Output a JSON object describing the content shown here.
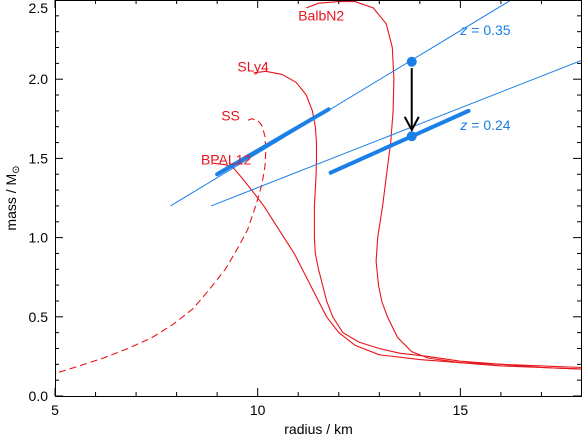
{
  "chart_data": {
    "type": "line",
    "xlabel": "radius / km",
    "ylabel": "mass / M",
    "ylabel_subscript": "⊙",
    "xlim": [
      5,
      18
    ],
    "ylim": [
      0.0,
      2.5
    ],
    "xticks": [
      {
        "value": 5,
        "label": "5"
      },
      {
        "value": 10,
        "label": "10"
      },
      {
        "value": 15,
        "label": "15"
      }
    ],
    "yticks": [
      {
        "value": 0.0,
        "label": "0.0"
      },
      {
        "value": 0.5,
        "label": "0.5"
      },
      {
        "value": 1.0,
        "label": "1.0"
      },
      {
        "value": 1.5,
        "label": "1.5"
      },
      {
        "value": 2.0,
        "label": "2.0"
      },
      {
        "value": 2.5,
        "label": "2.5"
      }
    ],
    "colors": {
      "eos": "#e8141c",
      "z": "#1a7fe6",
      "arrow": "#000000"
    },
    "series": [
      {
        "name": "BalbN2",
        "dashed": false,
        "label_at": [
          11.0,
          2.37
        ],
        "points": [
          [
            18,
            0.17
          ],
          [
            17,
            0.18
          ],
          [
            16,
            0.19
          ],
          [
            15,
            0.21
          ],
          [
            14.2,
            0.24
          ],
          [
            13.8,
            0.28
          ],
          [
            13.45,
            0.37
          ],
          [
            13.2,
            0.5
          ],
          [
            13.06,
            0.6
          ],
          [
            12.98,
            0.7
          ],
          [
            12.92,
            0.85
          ],
          [
            12.96,
            1.0
          ],
          [
            13.08,
            1.2
          ],
          [
            13.18,
            1.4
          ],
          [
            13.28,
            1.6
          ],
          [
            13.34,
            1.8
          ],
          [
            13.36,
            2.0
          ],
          [
            13.32,
            2.2
          ],
          [
            13.17,
            2.35
          ],
          [
            12.85,
            2.45
          ],
          [
            12.4,
            2.49
          ],
          [
            12.0,
            2.49
          ],
          [
            11.5,
            2.48
          ],
          [
            11.2,
            2.45
          ]
        ]
      },
      {
        "name": "SLy4",
        "dashed": false,
        "label_at": [
          9.5,
          2.05
        ],
        "points": [
          [
            18,
            0.17
          ],
          [
            17,
            0.18
          ],
          [
            16,
            0.2
          ],
          [
            15,
            0.22
          ],
          [
            14.2,
            0.25
          ],
          [
            13.5,
            0.27
          ],
          [
            13.0,
            0.3
          ],
          [
            12.5,
            0.34
          ],
          [
            12.1,
            0.4
          ],
          [
            11.85,
            0.5
          ],
          [
            11.7,
            0.6
          ],
          [
            11.6,
            0.7
          ],
          [
            11.5,
            0.8
          ],
          [
            11.42,
            0.9
          ],
          [
            11.4,
            1.0
          ],
          [
            11.4,
            1.1
          ],
          [
            11.4,
            1.2
          ],
          [
            11.42,
            1.3
          ],
          [
            11.44,
            1.4
          ],
          [
            11.45,
            1.5
          ],
          [
            11.45,
            1.6
          ],
          [
            11.42,
            1.7
          ],
          [
            11.35,
            1.8
          ],
          [
            11.2,
            1.9
          ],
          [
            10.95,
            1.98
          ],
          [
            10.6,
            2.03
          ],
          [
            10.2,
            2.05
          ],
          [
            9.9,
            2.04
          ]
        ]
      },
      {
        "name": "BPAL12",
        "dashed": false,
        "label_at": [
          8.6,
          1.46
        ],
        "points": [
          [
            18,
            0.18
          ],
          [
            17,
            0.19
          ],
          [
            16,
            0.2
          ],
          [
            15,
            0.21
          ],
          [
            14.0,
            0.23
          ],
          [
            13.0,
            0.26
          ],
          [
            12.4,
            0.32
          ],
          [
            12.0,
            0.4
          ],
          [
            11.7,
            0.5
          ],
          [
            11.5,
            0.6
          ],
          [
            11.3,
            0.7
          ],
          [
            11.1,
            0.8
          ],
          [
            10.9,
            0.9
          ],
          [
            10.65,
            1.0
          ],
          [
            10.4,
            1.1
          ],
          [
            10.15,
            1.2
          ],
          [
            9.85,
            1.3
          ],
          [
            9.6,
            1.38
          ],
          [
            9.4,
            1.44
          ],
          [
            9.2,
            1.46
          ],
          [
            8.9,
            1.47
          ]
        ]
      },
      {
        "name": "SS",
        "dashed": true,
        "label_at": [
          9.1,
          1.74
        ],
        "points": [
          [
            5.1,
            0.15
          ],
          [
            5.6,
            0.19
          ],
          [
            6.2,
            0.24
          ],
          [
            6.8,
            0.3
          ],
          [
            7.4,
            0.37
          ],
          [
            7.9,
            0.45
          ],
          [
            8.4,
            0.55
          ],
          [
            8.8,
            0.67
          ],
          [
            9.2,
            0.8
          ],
          [
            9.5,
            0.93
          ],
          [
            9.75,
            1.05
          ],
          [
            9.95,
            1.2
          ],
          [
            10.1,
            1.33
          ],
          [
            10.18,
            1.45
          ],
          [
            10.2,
            1.55
          ],
          [
            10.18,
            1.64
          ],
          [
            10.1,
            1.71
          ],
          [
            10.0,
            1.74
          ],
          [
            9.85,
            1.75
          ],
          [
            9.75,
            1.74
          ]
        ]
      }
    ],
    "z_lines": [
      {
        "z": "0.35",
        "thin": [
          [
            7.85,
            1.2
          ],
          [
            16.25,
            2.5
          ]
        ],
        "thick": [
          [
            9.0,
            1.4
          ],
          [
            11.75,
            1.81
          ]
        ],
        "label_at": [
          15.0,
          2.28
        ]
      },
      {
        "z": "0.24",
        "thin": [
          [
            8.85,
            1.2
          ],
          [
            18.0,
            2.12
          ]
        ],
        "thick": [
          [
            11.8,
            1.41
          ],
          [
            15.2,
            1.8
          ]
        ],
        "label_at": [
          15.0,
          1.68
        ]
      }
    ],
    "points": [
      {
        "x": 13.8,
        "y": 2.11
      },
      {
        "x": 13.8,
        "y": 1.64
      }
    ],
    "arrow": {
      "from": [
        13.8,
        2.07
      ],
      "to": [
        13.8,
        1.68
      ]
    },
    "z_symbol": "z",
    "z_eq": " = "
  }
}
